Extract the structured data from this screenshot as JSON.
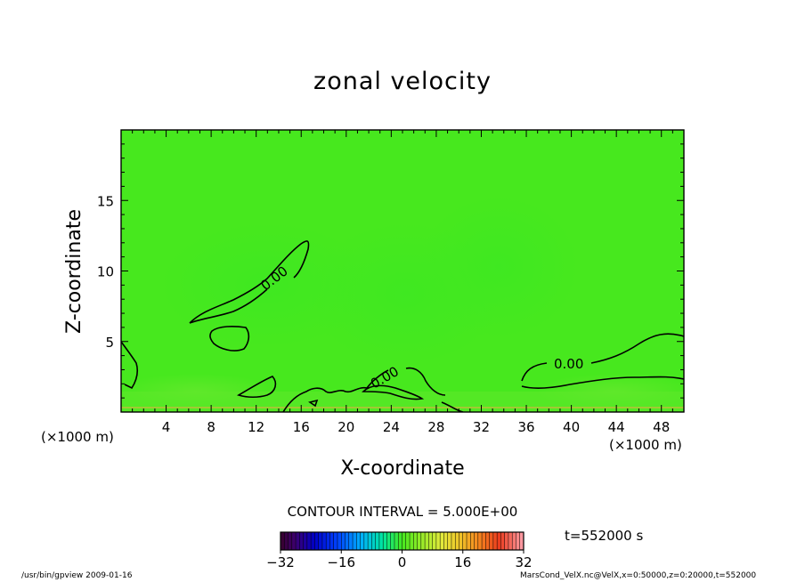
{
  "chart_data": {
    "type": "heatmap",
    "title": "zonal velocity",
    "xlabel": "X-coordinate",
    "ylabel": "Z-coordinate",
    "x_unit_label": "(×1000 m)",
    "xlim": [
      0,
      50
    ],
    "ylim": [
      0,
      20
    ],
    "x_ticks": [
      4,
      8,
      12,
      16,
      20,
      24,
      28,
      32,
      36,
      40,
      44,
      48
    ],
    "y_ticks": [
      5,
      10,
      15
    ],
    "contour_interval_text": "CONTOUR INTERVAL = 5.000E+00",
    "contour_labels": [
      {
        "text": "0.00",
        "x": 14,
        "z": 9.3
      },
      {
        "text": "0.00",
        "x": 23.3,
        "z": 2.4
      },
      {
        "text": "0.00",
        "x": 40,
        "z": 3.4
      }
    ],
    "colorbar": {
      "min": -32,
      "max": 32,
      "ticks": [
        -32,
        -16,
        0,
        16,
        32
      ],
      "tick_labels": [
        "−32",
        "−16",
        "0",
        "16",
        "32"
      ]
    },
    "field_description_value": 0,
    "time_label": "t=552000 s"
  },
  "footer": {
    "left": "/usr/bin/gpview  2009-01-16",
    "right": "MarsCond_VelX.nc@VelX,x=0:50000,z=0:20000,t=552000"
  },
  "colors": {
    "background_field": "#47e81e",
    "line": "#000000"
  }
}
